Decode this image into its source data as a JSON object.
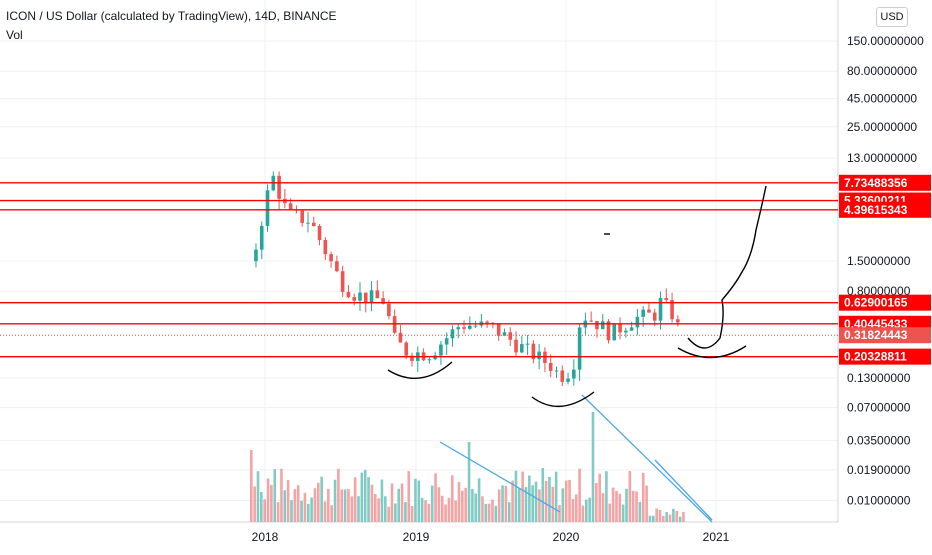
{
  "header": {
    "title": "ICON / US Dollar (calculated by TradingView), 14D, BINANCE",
    "volume_label": "Vol",
    "currency_button": "USD"
  },
  "colors": {
    "up": "#26a69a",
    "down": "#ef5350",
    "vol_up": "#80cbc4",
    "vol_down": "#f4a4a4",
    "level": "#ff0000",
    "trend": "#4aa8e8",
    "grid": "#eef0f3"
  },
  "chart_data": {
    "type": "candlestick",
    "y_scale": "log",
    "x_tick_labels": [
      "2018",
      "2019",
      "2020",
      "2021"
    ],
    "y_tick_labels": [
      "150.00000000",
      "80.00000000",
      "45.00000000",
      "25.00000000",
      "13.00000000",
      "1.50000000",
      "0.80000000",
      "0.13000000",
      "0.07000000",
      "0.03500000",
      "0.01900000",
      "0.01000000"
    ],
    "price_levels": [
      "7.73488356",
      "5.33600211",
      "4.39615343",
      "0.62900165",
      "0.40445433",
      "0.20328811"
    ],
    "current_price": "0.31824443"
  }
}
